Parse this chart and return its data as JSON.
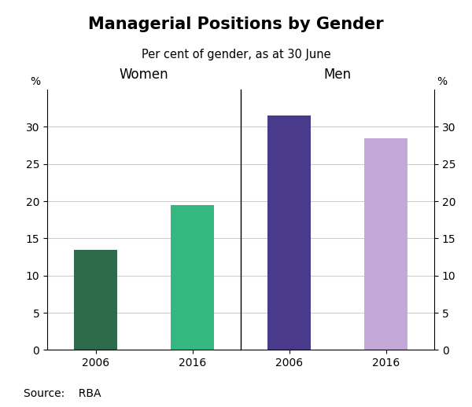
{
  "title": "Managerial Positions by Gender",
  "subtitle": "Per cent of gender, as at 30 June",
  "source": "Source:    RBA",
  "panels": [
    {
      "label": "Women",
      "categories": [
        "2006",
        "2016"
      ],
      "values": [
        13.5,
        19.5
      ],
      "colors": [
        "#2d6b4a",
        "#35b880"
      ]
    },
    {
      "label": "Men",
      "categories": [
        "2006",
        "2016"
      ],
      "values": [
        31.5,
        28.5
      ],
      "colors": [
        "#4a3a8c",
        "#c4a8d8"
      ]
    }
  ],
  "ylim": [
    0,
    35
  ],
  "yticks": [
    0,
    5,
    10,
    15,
    20,
    25,
    30
  ],
  "pct_label": "%",
  "bar_width": 0.45,
  "background_color": "#ffffff",
  "grid_color": "#cccccc",
  "title_fontsize": 15,
  "subtitle_fontsize": 10.5,
  "panel_label_fontsize": 12,
  "tick_fontsize": 10,
  "source_fontsize": 10
}
